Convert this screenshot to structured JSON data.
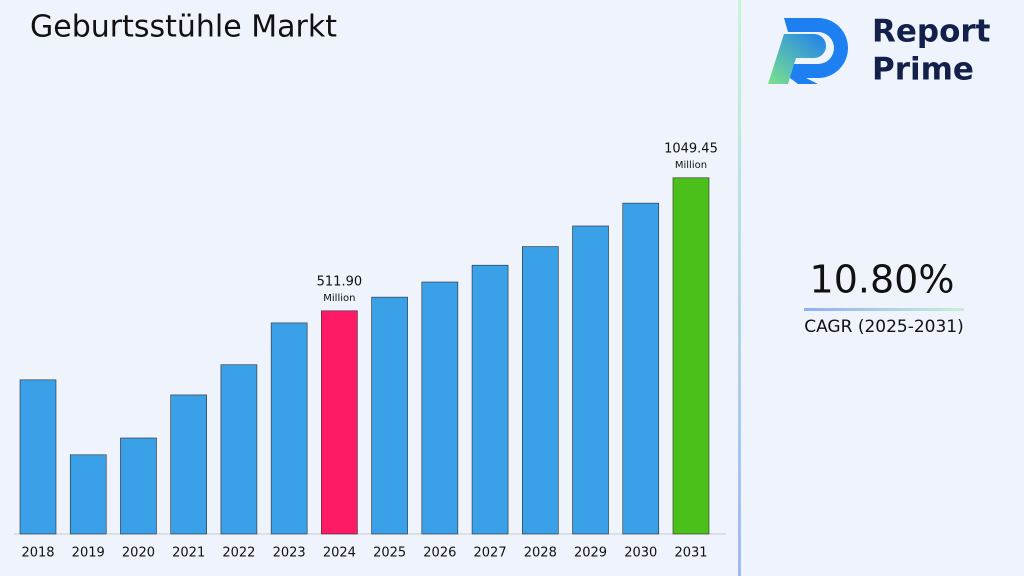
{
  "chart_data": {
    "type": "bar",
    "title": "Geburtsstühle Markt",
    "categories": [
      "2018",
      "2019",
      "2020",
      "2021",
      "2022",
      "2023",
      "2024",
      "2025",
      "2026",
      "2027",
      "2028",
      "2029",
      "2030",
      "2031"
    ],
    "values": [
      233,
      -70,
      -2,
      172,
      294,
      463,
      511.9,
      567.2,
      628.4,
      696.3,
      771.5,
      854.8,
      947.1,
      1049.45
    ],
    "value_labels": [
      null,
      null,
      null,
      null,
      null,
      null,
      "511.90",
      null,
      null,
      null,
      null,
      null,
      null,
      "1049.45"
    ],
    "value_label_unit": "Million",
    "colors": [
      "#3aa0e8",
      "#3aa0e8",
      "#3aa0e8",
      "#3aa0e8",
      "#3aa0e8",
      "#3aa0e8",
      "#ff1a66",
      "#3aa0e8",
      "#3aa0e8",
      "#3aa0e8",
      "#3aa0e8",
      "#3aa0e8",
      "#3aa0e8",
      "#4cc01a"
    ],
    "ylim": [
      -390,
      1100
    ],
    "grid": false
  },
  "sidebar": {
    "brand_line1": "Report",
    "brand_line2": "Prime",
    "cagr_value": "10.80%",
    "cagr_label": "CAGR (2025-2031)"
  }
}
